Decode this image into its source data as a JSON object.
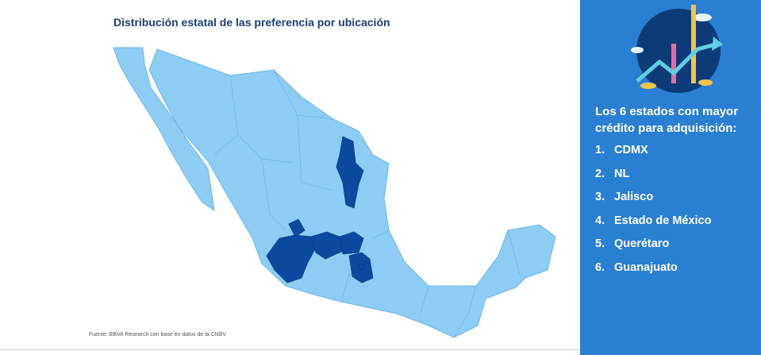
{
  "title": "Distribución estatal de las preferencia por ubicación",
  "source": "Fuente: BBVA Research con base en datos de la CNBV",
  "sidebar": {
    "heading": "Los 6 estados con mayor crédito para adquisición:",
    "items": [
      {
        "number": "1.",
        "label": "CDMX"
      },
      {
        "number": "2.",
        "label": "NL"
      },
      {
        "number": "3.",
        "label": "Jalisco"
      },
      {
        "number": "4.",
        "label": "Estado de México"
      },
      {
        "number": "5.",
        "label": "Querétaro"
      },
      {
        "number": "6.",
        "label": "Guanajuato"
      }
    ]
  }
}
